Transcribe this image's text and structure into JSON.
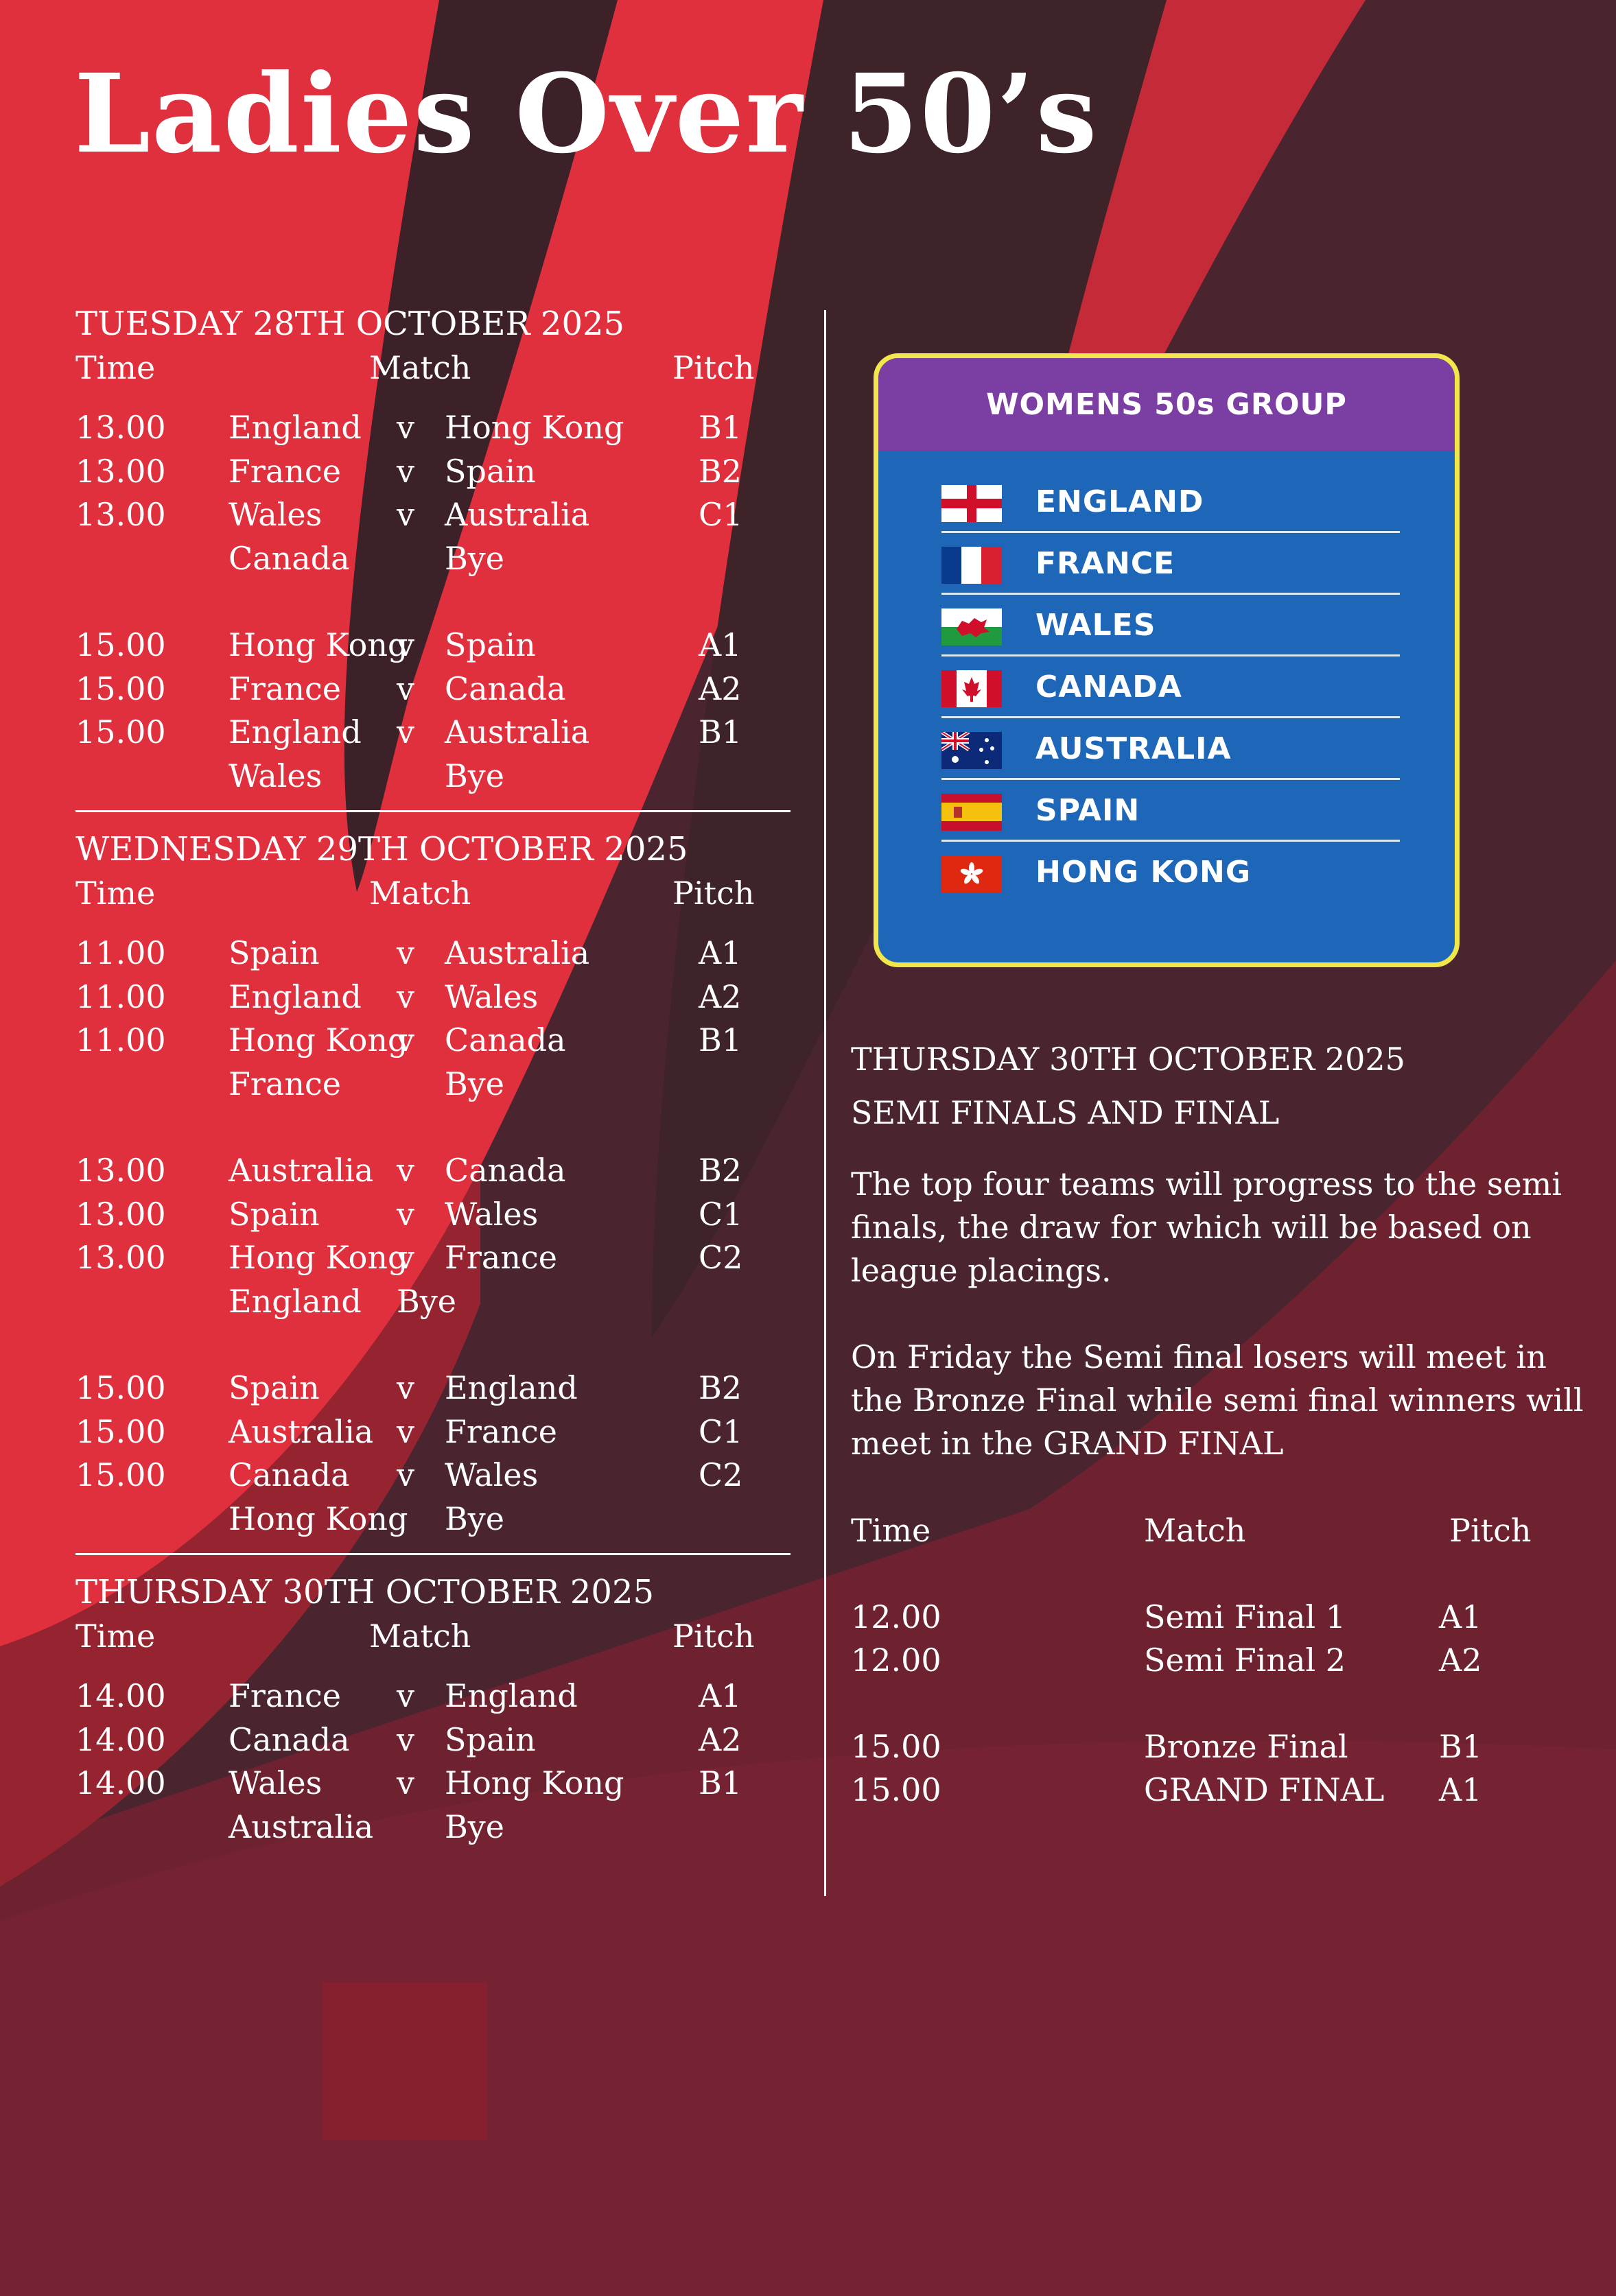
{
  "title": "Ladies Over 50’s",
  "headers": {
    "time": "Time",
    "match": "Match",
    "pitch": "Pitch",
    "v": "v"
  },
  "days": [
    {
      "heading": "TUESDAY 28TH OCTOBER 2025",
      "blocks": [
        [
          {
            "time": "13.00",
            "t1": "England",
            "v": "v",
            "t2": "Hong Kong",
            "pitch": "B1"
          },
          {
            "time": "13.00",
            "t1": "France",
            "v": "v",
            "t2": "Spain",
            "pitch": "B2"
          },
          {
            "time": "13.00",
            "t1": "Wales",
            "v": "v",
            "t2": "Australia",
            "pitch": "C1"
          },
          {
            "time": "",
            "t1": "Canada",
            "v": "",
            "t2": "Bye",
            "pitch": ""
          }
        ],
        [
          {
            "time": "15.00",
            "t1": "Hong Kong",
            "v": "v",
            "t2": "Spain",
            "pitch": "A1"
          },
          {
            "time": "15.00",
            "t1": "France",
            "v": "v",
            "t2": "Canada",
            "pitch": "A2"
          },
          {
            "time": "15.00",
            "t1": "England",
            "v": "v",
            "t2": "Australia",
            "pitch": "B1"
          },
          {
            "time": "",
            "t1": "Wales",
            "v": "",
            "t2": "Bye",
            "pitch": ""
          }
        ]
      ]
    },
    {
      "heading": "WEDNESDAY 29TH OCTOBER 2025",
      "blocks": [
        [
          {
            "time": "11.00",
            "t1": "Spain",
            "v": "v",
            "t2": "Australia",
            "pitch": "A1"
          },
          {
            "time": "11.00",
            "t1": "England",
            "v": "v",
            "t2": "Wales",
            "pitch": "A2"
          },
          {
            "time": "11.00",
            "t1": "Hong Kong",
            "v": "v",
            "t2": "Canada",
            "pitch": "B1"
          },
          {
            "time": "",
            "t1": "France",
            "v": "",
            "t2": "Bye",
            "pitch": ""
          }
        ],
        [
          {
            "time": "13.00",
            "t1": "Australia",
            "v": "v",
            "t2": "Canada",
            "pitch": "B2"
          },
          {
            "time": "13.00",
            "t1": "Spain",
            "v": "v",
            "t2": "Wales",
            "pitch": "C1"
          },
          {
            "time": "13.00",
            "t1": "Hong Kong",
            "v": "v",
            "t2": "France",
            "pitch": "C2"
          },
          {
            "time": "",
            "t1": "England",
            "v": "Bye",
            "t2": "",
            "pitch": ""
          }
        ],
        [
          {
            "time": "15.00",
            "t1": "Spain",
            "v": "v",
            "t2": "England",
            "pitch": "B2"
          },
          {
            "time": "15.00",
            "t1": "Australia",
            "v": "v",
            "t2": "France",
            "pitch": "C1"
          },
          {
            "time": "15.00",
            "t1": "Canada",
            "v": "v",
            "t2": "Wales",
            "pitch": "C2"
          },
          {
            "time": "",
            "t1": "Hong Kong",
            "v": "",
            "t2": "Bye",
            "pitch": ""
          }
        ]
      ]
    },
    {
      "heading": "THURSDAY 30TH OCTOBER 2025",
      "blocks": [
        [
          {
            "time": "14.00",
            "t1": "France",
            "v": "v",
            "t2": "England",
            "pitch": "A1"
          },
          {
            "time": "14.00",
            "t1": "Canada",
            "v": "v",
            "t2": "Spain",
            "pitch": "A2"
          },
          {
            "time": "14.00",
            "t1": "Wales",
            "v": "v",
            "t2": "Hong Kong",
            "pitch": "B1"
          },
          {
            "time": "",
            "t1": "Australia",
            "v": "",
            "t2": "Bye",
            "pitch": ""
          }
        ]
      ]
    }
  ],
  "group": {
    "title": "WOMENS 50s GROUP",
    "teams": [
      {
        "name": "ENGLAND",
        "flag": "england-flag-icon"
      },
      {
        "name": "FRANCE",
        "flag": "france-flag-icon"
      },
      {
        "name": "WALES",
        "flag": "wales-flag-icon"
      },
      {
        "name": "CANADA",
        "flag": "canada-flag-icon"
      },
      {
        "name": "AUSTRALIA",
        "flag": "australia-flag-icon"
      },
      {
        "name": "SPAIN",
        "flag": "spain-flag-icon"
      },
      {
        "name": "HONG KONG",
        "flag": "hong-kong-flag-icon"
      }
    ]
  },
  "finals": {
    "heading": "THURSDAY 30TH OCTOBER 2025",
    "subheading": "SEMI FINALS AND FINAL",
    "para1": "The top four teams will progress to the semi finals, the draw for which will be based on league placings.",
    "para2": "On Friday the Semi final losers will meet in the Bronze Final while semi final winners will meet in the GRAND FINAL",
    "blocks": [
      [
        {
          "time": "12.00",
          "match": "Semi Final 1",
          "pitch": "A1"
        },
        {
          "time": "12.00",
          "match": "Semi Final 2",
          "pitch": "A2"
        }
      ],
      [
        {
          "time": "15.00",
          "match": "Bronze Final",
          "pitch": "B1"
        },
        {
          "time": "15.00",
          "match": "GRAND FINAL",
          "pitch": "A1"
        }
      ]
    ]
  },
  "colors": {
    "background": "#6e2230",
    "red_swoosh": "#e0303e",
    "dark_swoosh": "#3d2128",
    "card_blue": "#1e66b8",
    "card_purple": "#7b3fa3",
    "card_border": "#f1e64a"
  }
}
